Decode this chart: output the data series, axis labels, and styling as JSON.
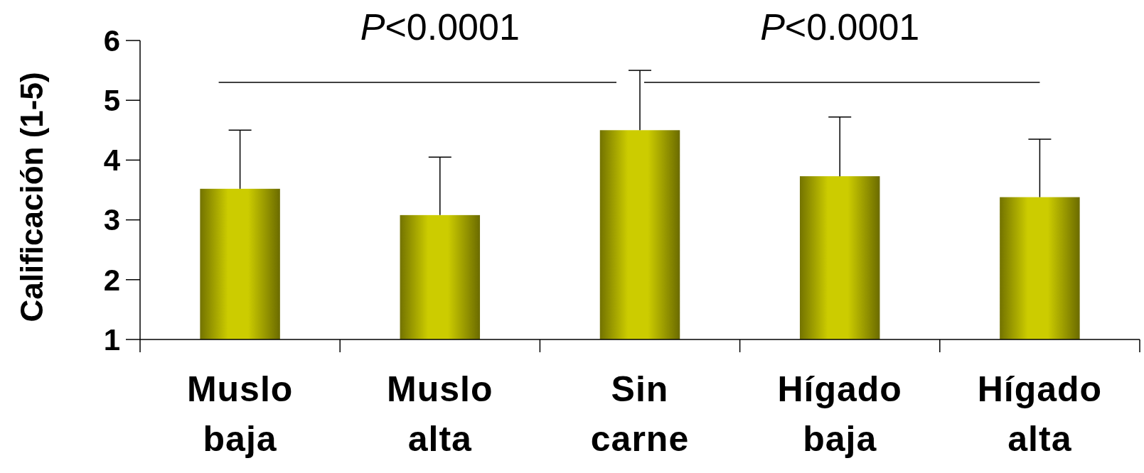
{
  "chart_data": {
    "type": "bar",
    "ylabel": "Calificación (1-5)",
    "categories": [
      "Muslo baja",
      "Muslo alta",
      "Sin carne",
      "Hígado baja",
      "Hígado alta"
    ],
    "values": [
      3.52,
      3.08,
      4.5,
      3.73,
      3.38
    ],
    "errors": [
      [
        3.52,
        4.5
      ],
      [
        3.08,
        4.05
      ],
      [
        4.5,
        5.5
      ],
      [
        3.73,
        4.72
      ],
      [
        3.38,
        4.35
      ]
    ],
    "color": "#cccc00",
    "ylim": [
      1,
      6
    ],
    "yticks": [
      1,
      2,
      3,
      4,
      5,
      6
    ],
    "annotations": [
      "P<0.0001",
      "P<0.0001"
    ]
  }
}
